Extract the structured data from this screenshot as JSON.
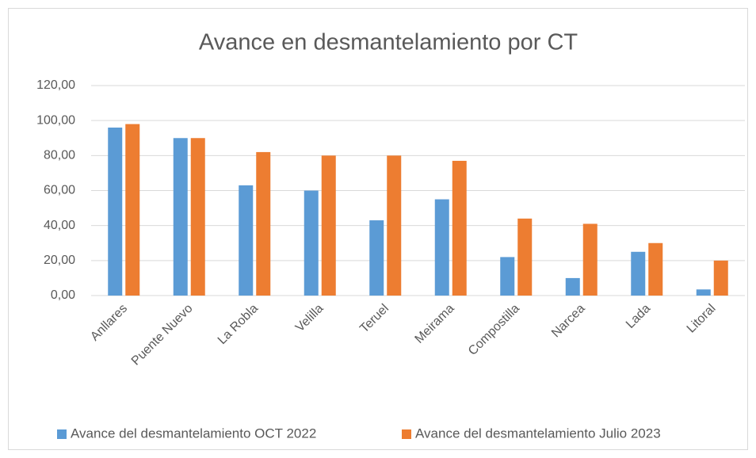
{
  "chart_data": {
    "type": "bar",
    "title": "Avance en desmantelamiento por CT",
    "categories": [
      "Anllares",
      "Puente Nuevo",
      "La Robla",
      "Velilla",
      "Teruel",
      "Meirama",
      "Compostilla",
      "Narcea",
      "Lada",
      "Litoral"
    ],
    "series": [
      {
        "name": "Avance del desmantelamiento OCT 2022",
        "color": "#5b9bd5",
        "values": [
          96,
          90,
          63,
          60,
          43,
          55,
          22,
          10,
          25,
          3.5
        ]
      },
      {
        "name": "Avance del desmantelamiento Julio 2023",
        "color": "#ed7d31",
        "values": [
          98,
          90,
          82,
          80,
          80,
          77,
          44,
          41,
          30,
          20
        ]
      }
    ],
    "ylim": [
      0,
      120
    ],
    "yticks": [
      {
        "value": 0,
        "label": "0,00"
      },
      {
        "value": 20,
        "label": "20,00"
      },
      {
        "value": 40,
        "label": "40,00"
      },
      {
        "value": 60,
        "label": "60,00"
      },
      {
        "value": 80,
        "label": "80,00"
      },
      {
        "value": 100,
        "label": "100,00"
      },
      {
        "value": 120,
        "label": "120,00"
      }
    ],
    "grid": true,
    "legend": "bottom"
  }
}
